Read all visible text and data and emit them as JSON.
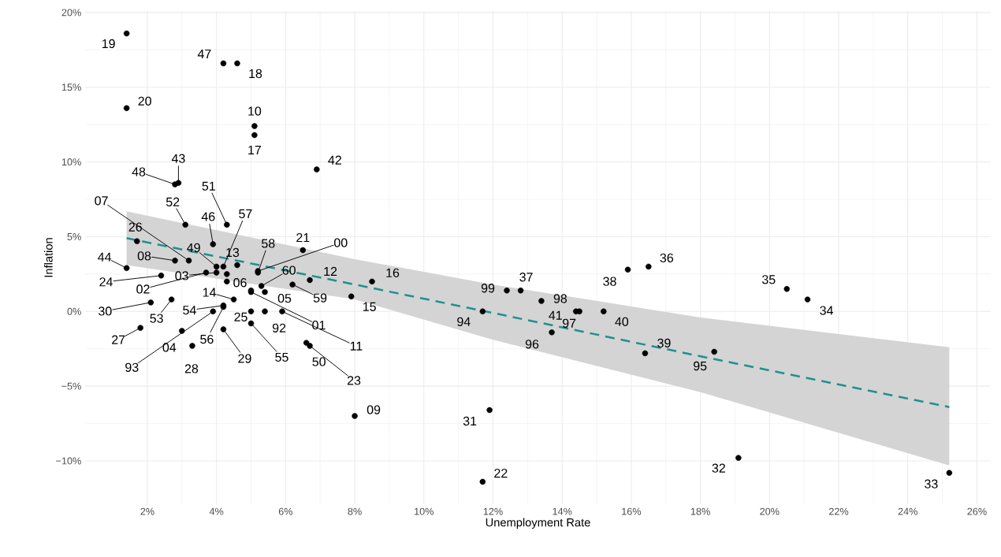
{
  "chart_data": {
    "type": "scatter",
    "xlabel": "Unemployment Rate",
    "ylabel": "Inflation",
    "xlim": [
      0.2,
      26.4
    ],
    "ylim": [
      -12.9,
      20.1
    ],
    "xticks": [
      {
        "value": 2,
        "label": "2%"
      },
      {
        "value": 4,
        "label": "4%"
      },
      {
        "value": 6,
        "label": "6%"
      },
      {
        "value": 8,
        "label": "8%"
      },
      {
        "value": 10,
        "label": "10%"
      },
      {
        "value": 12,
        "label": "12%"
      },
      {
        "value": 14,
        "label": "14%"
      },
      {
        "value": 16,
        "label": "16%"
      },
      {
        "value": 18,
        "label": "18%"
      },
      {
        "value": 20,
        "label": "20%"
      },
      {
        "value": 22,
        "label": "22%"
      },
      {
        "value": 24,
        "label": "24%"
      },
      {
        "value": 26,
        "label": "26%"
      }
    ],
    "yticks": [
      {
        "value": -10,
        "label": "−10%"
      },
      {
        "value": -5,
        "label": "−5%"
      },
      {
        "value": 0,
        "label": "0%"
      },
      {
        "value": 5,
        "label": "5%"
      },
      {
        "value": 10,
        "label": "10%"
      },
      {
        "value": 15,
        "label": "15%"
      },
      {
        "value": 20,
        "label": "20%"
      }
    ],
    "grid": true,
    "series": [
      {
        "type": "scatter",
        "color": "#000000",
        "marker": "circle",
        "x": [
          1.4,
          1.4,
          4.2,
          4.6,
          5.1,
          5.1,
          6.9,
          2.9,
          2.8,
          3.1,
          4.3,
          3.9,
          4.2,
          3.2,
          1.7,
          2.8,
          4.0,
          4.6,
          5.2,
          6.5,
          5.2,
          1.4,
          2.4,
          4.0,
          3.7,
          5.3,
          6.7,
          6.2,
          8.5,
          5.0,
          5.4,
          5.0,
          7.9,
          2.1,
          2.7,
          4.5,
          4.2,
          4.2,
          3.9,
          3.0,
          1.8,
          3.3,
          4.2,
          5.0,
          5.4,
          5.0,
          5.9,
          6.6,
          6.7,
          8.0,
          12.4,
          12.8,
          13.4,
          11.7,
          14.4,
          14.5,
          13.7,
          15.2,
          15.9,
          16.5,
          16.4,
          18.4,
          20.5,
          21.1,
          19.1,
          25.2,
          11.9,
          11.7,
          4.3,
          4.3
        ],
        "values": [
          18.6,
          13.6,
          16.6,
          16.6,
          12.4,
          11.8,
          9.5,
          8.6,
          8.5,
          5.8,
          5.8,
          4.5,
          3.0,
          3.4,
          4.7,
          3.4,
          3.0,
          3.1,
          2.6,
          4.1,
          2.7,
          2.9,
          2.4,
          2.6,
          2.6,
          1.7,
          2.1,
          1.8,
          2.0,
          1.4,
          1.3,
          1.3,
          1.0,
          0.6,
          0.8,
          0.8,
          0.4,
          0.3,
          0.0,
          -1.3,
          -1.1,
          -2.3,
          -1.2,
          0.0,
          0.0,
          -0.8,
          0.0,
          -2.1,
          -2.3,
          -7.0,
          1.4,
          1.4,
          0.7,
          0.0,
          0.0,
          0.0,
          -1.4,
          0.0,
          2.8,
          3.0,
          -2.8,
          -2.7,
          1.5,
          0.8,
          -9.8,
          -10.8,
          -6.6,
          -11.4,
          2.5,
          2.0
        ]
      },
      {
        "type": "line",
        "color": "#21908c",
        "line_style": "dashed",
        "x": [
          1.4,
          8,
          12,
          18,
          25.2
        ],
        "values": [
          4.9,
          1.8,
          -0.1,
          -3.0,
          -6.4
        ],
        "lower": [
          3.1,
          0.8,
          -1.9,
          -5.4,
          -10.3
        ],
        "upper": [
          6.7,
          3.5,
          1.8,
          -0.4,
          -2.4
        ]
      }
    ],
    "annotations": [
      {
        "text": "19",
        "x": 1.4,
        "y": 18.6
      },
      {
        "text": "20",
        "x": 1.4,
        "y": 13.6
      },
      {
        "text": "47",
        "x": 4.2,
        "y": 16.6
      },
      {
        "text": "18",
        "x": 4.6,
        "y": 16.6
      },
      {
        "text": "10",
        "x": 5.1,
        "y": 12.4
      },
      {
        "text": "17",
        "x": 5.1,
        "y": 11.8
      },
      {
        "text": "42",
        "x": 6.9,
        "y": 9.5
      },
      {
        "text": "43",
        "x": 2.9,
        "y": 8.6
      },
      {
        "text": "48",
        "x": 2.8,
        "y": 8.5
      },
      {
        "text": "52",
        "x": 3.1,
        "y": 5.8
      },
      {
        "text": "51",
        "x": 4.3,
        "y": 5.8
      },
      {
        "text": "46",
        "x": 3.9,
        "y": 4.5
      },
      {
        "text": "57",
        "x": 4.2,
        "y": 3.0
      },
      {
        "text": "07",
        "x": 3.2,
        "y": 3.4
      },
      {
        "text": "26",
        "x": 1.7,
        "y": 4.7
      },
      {
        "text": "08",
        "x": 2.8,
        "y": 3.4
      },
      {
        "text": "49",
        "x": 4.0,
        "y": 3.0
      },
      {
        "text": "13",
        "x": 4.6,
        "y": 3.1
      },
      {
        "text": "58",
        "x": 5.2,
        "y": 2.6
      },
      {
        "text": "21",
        "x": 6.5,
        "y": 4.1
      },
      {
        "text": "00",
        "x": 5.2,
        "y": 2.7
      },
      {
        "text": "44",
        "x": 1.4,
        "y": 2.9
      },
      {
        "text": "24",
        "x": 2.4,
        "y": 2.4
      },
      {
        "text": "03",
        "x": 4.0,
        "y": 2.6
      },
      {
        "text": "02",
        "x": 3.7,
        "y": 2.6
      },
      {
        "text": "60",
        "x": 5.3,
        "y": 1.7
      },
      {
        "text": "12",
        "x": 6.7,
        "y": 2.1
      },
      {
        "text": "59",
        "x": 6.2,
        "y": 1.8
      },
      {
        "text": "16",
        "x": 8.5,
        "y": 2.0
      },
      {
        "text": "06",
        "x": 5.0,
        "y": 1.4
      },
      {
        "text": "05",
        "x": 5.4,
        "y": 1.3
      },
      {
        "text": "01",
        "x": 5.0,
        "y": 1.3
      },
      {
        "text": "15",
        "x": 7.9,
        "y": 1.0
      },
      {
        "text": "30",
        "x": 2.1,
        "y": 0.6
      },
      {
        "text": "53",
        "x": 2.7,
        "y": 0.8
      },
      {
        "text": "14",
        "x": 4.5,
        "y": 0.8
      },
      {
        "text": "54",
        "x": 4.2,
        "y": 0.4
      },
      {
        "text": "56",
        "x": 4.2,
        "y": 0.3
      },
      {
        "text": "93",
        "x": 3.9,
        "y": 0.0
      },
      {
        "text": "04",
        "x": 3.0,
        "y": -1.3
      },
      {
        "text": "27",
        "x": 1.8,
        "y": -1.1
      },
      {
        "text": "28",
        "x": 3.3,
        "y": -2.3
      },
      {
        "text": "29",
        "x": 4.2,
        "y": -1.2
      },
      {
        "text": "25",
        "x": 5.0,
        "y": 0.0
      },
      {
        "text": "92",
        "x": 5.4,
        "y": 0.0
      },
      {
        "text": "55",
        "x": 5.0,
        "y": -0.8
      },
      {
        "text": "11",
        "x": 5.9,
        "y": 0.0
      },
      {
        "text": "50",
        "x": 6.6,
        "y": -2.1
      },
      {
        "text": "23",
        "x": 6.7,
        "y": -2.3
      },
      {
        "text": "09",
        "x": 8.0,
        "y": -7.0
      },
      {
        "text": "99",
        "x": 12.4,
        "y": 1.4
      },
      {
        "text": "37",
        "x": 12.8,
        "y": 1.4
      },
      {
        "text": "98",
        "x": 13.4,
        "y": 0.7
      },
      {
        "text": "94",
        "x": 11.7,
        "y": 0.0
      },
      {
        "text": "41",
        "x": 14.4,
        "y": 0.0
      },
      {
        "text": "97",
        "x": 14.5,
        "y": 0.0
      },
      {
        "text": "96",
        "x": 13.7,
        "y": -1.4
      },
      {
        "text": "40",
        "x": 15.2,
        "y": 0.0
      },
      {
        "text": "38",
        "x": 15.9,
        "y": 2.8
      },
      {
        "text": "36",
        "x": 16.5,
        "y": 3.0
      },
      {
        "text": "39",
        "x": 16.4,
        "y": -2.8
      },
      {
        "text": "95",
        "x": 18.4,
        "y": -2.7
      },
      {
        "text": "35",
        "x": 20.5,
        "y": 1.5
      },
      {
        "text": "34",
        "x": 21.1,
        "y": 0.8
      },
      {
        "text": "32",
        "x": 19.1,
        "y": -9.8
      },
      {
        "text": "33",
        "x": 25.2,
        "y": -10.8
      },
      {
        "text": "31",
        "x": 11.9,
        "y": -6.6
      },
      {
        "text": "22",
        "x": 11.7,
        "y": -11.4
      }
    ]
  }
}
